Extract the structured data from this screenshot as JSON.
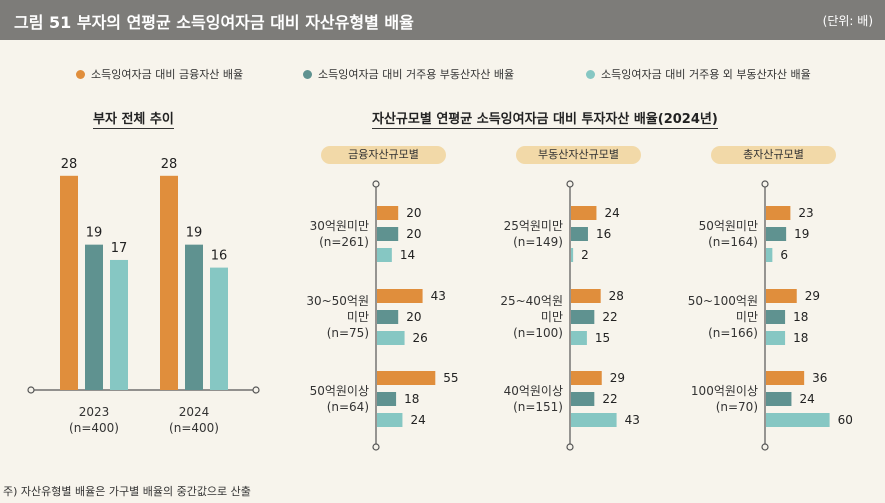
{
  "header": {
    "title": "그림 51  부자의 연평균 소득잉여자금 대비 자산유형별 배율",
    "unit": "(단위: 배)"
  },
  "legend": [
    {
      "label": "소득잉여자금 대비 금융자산 배율",
      "color": "#e08e3c"
    },
    {
      "label": "소득잉여자금 대비 거주용 부동산자산 배율",
      "color": "#5f9290"
    },
    {
      "label": "소득잉여자금 대비 거주용 외 부동산자산 배율",
      "color": "#86c7c3"
    }
  ],
  "left_title": "부자 전체 추이",
  "right_title": "자산규모별 연평균 소득잉여자금 대비 투자자산 배율(2024년)",
  "footnote": "주) 자산유형별 배율은 가구별 배율의 중간값으로 산출",
  "colors": {
    "financial": "#e08e3c",
    "residential": "#5f9290",
    "non_residential": "#86c7c3"
  },
  "chart_data": [
    {
      "type": "bar",
      "title": "부자 전체 추이",
      "categories": [
        {
          "lines": [
            "2023",
            "(n=400)"
          ]
        },
        {
          "lines": [
            "2024",
            "(n=400)"
          ]
        }
      ],
      "series": [
        {
          "name": "소득잉여자금 대비 금융자산 배율",
          "values": [
            28,
            28
          ]
        },
        {
          "name": "소득잉여자금 대비 거주용 부동산자산 배율",
          "values": [
            19,
            19
          ]
        },
        {
          "name": "소득잉여자금 대비 거주용 외 부동산자산 배율",
          "values": [
            17,
            16
          ]
        }
      ],
      "ylim": [
        0,
        30
      ]
    },
    {
      "type": "bar",
      "orientation": "horizontal",
      "title": "금융자산규모별",
      "categories": [
        {
          "lines": [
            "30억원미만",
            "(n=261)"
          ]
        },
        {
          "lines": [
            "30~50억원",
            "미만",
            "(n=75)"
          ]
        },
        {
          "lines": [
            "50억원이상",
            "(n=64)"
          ]
        }
      ],
      "series": [
        {
          "name": "소득잉여자금 대비 금융자산 배율",
          "values": [
            20,
            43,
            55
          ]
        },
        {
          "name": "소득잉여자금 대비 거주용 부동산자산 배율",
          "values": [
            20,
            20,
            18
          ]
        },
        {
          "name": "소득잉여자금 대비 거주용 외 부동산자산 배율",
          "values": [
            14,
            26,
            24
          ]
        }
      ],
      "xlim": [
        0,
        60
      ]
    },
    {
      "type": "bar",
      "orientation": "horizontal",
      "title": "부동산자산규모별",
      "categories": [
        {
          "lines": [
            "25억원미만",
            "(n=149)"
          ]
        },
        {
          "lines": [
            "25~40억원",
            "미만",
            "(n=100)"
          ]
        },
        {
          "lines": [
            "40억원이상",
            "(n=151)"
          ]
        }
      ],
      "series": [
        {
          "name": "소득잉여자금 대비 금융자산 배율",
          "values": [
            24,
            28,
            29
          ]
        },
        {
          "name": "소득잉여자금 대비 거주용 부동산자산 배율",
          "values": [
            16,
            22,
            22
          ]
        },
        {
          "name": "소득잉여자금 대비 거주용 외 부동산자산 배율",
          "values": [
            2,
            15,
            43
          ]
        }
      ],
      "xlim": [
        0,
        60
      ]
    },
    {
      "type": "bar",
      "orientation": "horizontal",
      "title": "총자산규모별",
      "categories": [
        {
          "lines": [
            "50억원미만",
            "(n=164)"
          ]
        },
        {
          "lines": [
            "50~100억원",
            "미만",
            "(n=166)"
          ]
        },
        {
          "lines": [
            "100억원이상",
            "(n=70)"
          ]
        }
      ],
      "series": [
        {
          "name": "소득잉여자금 대비 금융자산 배율",
          "values": [
            23,
            29,
            36
          ]
        },
        {
          "name": "소득잉여자금 대비 거주용 부동산자산 배율",
          "values": [
            19,
            18,
            24
          ]
        },
        {
          "name": "소득잉여자금 대비 거주용 외 부동산자산 배율",
          "values": [
            6,
            18,
            60
          ]
        }
      ],
      "xlim": [
        0,
        60
      ]
    }
  ]
}
